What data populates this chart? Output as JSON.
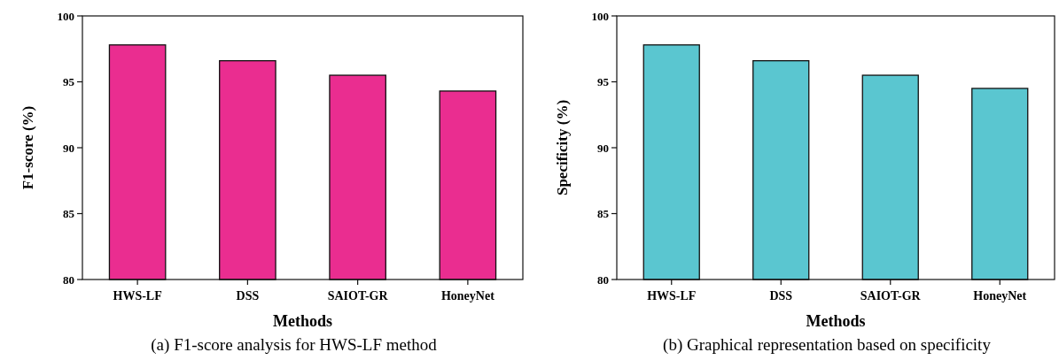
{
  "chart_data": [
    {
      "type": "bar",
      "title": "(a) F1-score analysis for HWS-LF method",
      "xlabel": "Methods",
      "ylabel": "F1-score (%)",
      "categories": [
        "HWS-LF",
        "DSS",
        "SAIOT-GR",
        "HoneyNet"
      ],
      "values": [
        97.8,
        96.6,
        95.5,
        94.3
      ],
      "color": "#ea2d90",
      "ylim": [
        80,
        100
      ],
      "yticks": [
        80,
        85,
        90,
        95,
        100
      ]
    },
    {
      "type": "bar",
      "title": "(b) Graphical representation based on specificity",
      "xlabel": "Methods",
      "ylabel": "Specificity (%)",
      "categories": [
        "HWS-LF",
        "DSS",
        "SAIOT-GR",
        "HoneyNet"
      ],
      "values": [
        97.8,
        96.6,
        95.5,
        94.5
      ],
      "color": "#5ac6d0",
      "ylim": [
        80,
        100
      ],
      "yticks": [
        80,
        85,
        90,
        95,
        100
      ]
    }
  ]
}
